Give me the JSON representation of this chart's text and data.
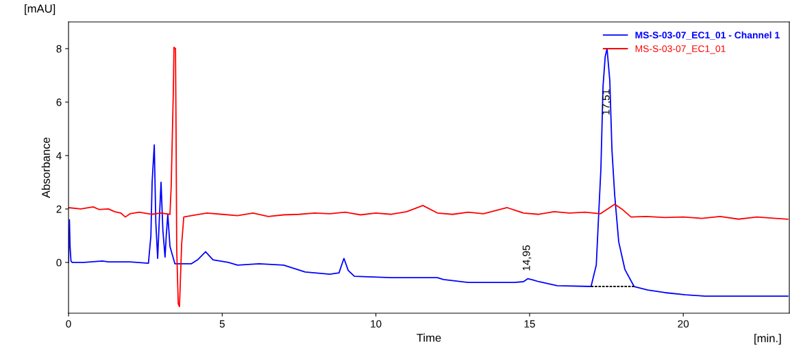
{
  "chart_data": {
    "type": "line",
    "xlabel": "Time",
    "ylabel": "Absorbance",
    "annotations": [
      "[mAU]",
      "[min.]",
      {
        "text": "14,95",
        "x": 14.95,
        "y": -0.61
      },
      {
        "text": "17,51",
        "x": 17.51,
        "y": 6.0
      }
    ],
    "xlim": [
      0,
      23.45
    ],
    "ylim": [
      -1.9,
      9.0
    ],
    "xticks": [
      0,
      5,
      10,
      15,
      20
    ],
    "yticks": [
      0,
      2,
      4,
      6,
      8
    ],
    "grid": false,
    "legend": "top right",
    "marker": "none",
    "line_style": "solid",
    "series": [
      {
        "name": "MS-S-03-07_EC1_01 - Channel 1",
        "color": "#0000ff",
        "x": [
          0,
          0.03,
          0.05,
          0.08,
          0.12,
          0.5,
          1.1,
          1.3,
          2.0,
          2.6,
          2.68,
          2.72,
          2.79,
          2.84,
          2.9,
          2.95,
          3.01,
          3.07,
          3.14,
          3.18,
          3.23,
          3.3,
          3.46,
          4.0,
          4.2,
          4.46,
          4.7,
          5.2,
          5.5,
          6.2,
          7.0,
          7.7,
          8.5,
          8.8,
          8.96,
          9.1,
          9.3,
          10.5,
          12.0,
          12.2,
          13.0,
          14.5,
          14.8,
          14.94,
          15.1,
          15.3,
          15.9,
          17.0,
          17.17,
          17.24,
          17.32,
          17.39,
          17.46,
          17.52,
          17.61,
          17.68,
          17.77,
          17.9,
          18.1,
          18.4,
          18.84,
          19.4,
          20.07,
          20.7,
          23.4
        ],
        "values": [
          0,
          1.6,
          0.6,
          0.05,
          0,
          0,
          0.05,
          0.02,
          0.02,
          -0.03,
          1.0,
          3.0,
          4.4,
          1.5,
          0.15,
          1.5,
          3.0,
          1.2,
          0.2,
          1.0,
          1.8,
          0.6,
          -0.05,
          -0.05,
          0.1,
          0.4,
          0.1,
          0.0,
          -0.1,
          -0.05,
          -0.1,
          -0.36,
          -0.44,
          -0.39,
          0.15,
          -0.3,
          -0.52,
          -0.57,
          -0.57,
          -0.64,
          -0.75,
          -0.75,
          -0.72,
          -0.61,
          -0.65,
          -0.72,
          -0.87,
          -0.9,
          -0.1,
          1.6,
          3.5,
          6.6,
          7.7,
          8.0,
          6.8,
          4.2,
          2.5,
          0.77,
          -0.26,
          -0.9,
          -1.03,
          -1.13,
          -1.21,
          -1.26,
          -1.26
        ]
      },
      {
        "name": "MS-S-03-07_EC1_01",
        "color": "#ff0000",
        "x": [
          0,
          0.4,
          0.8,
          1.0,
          1.3,
          1.5,
          1.7,
          1.85,
          2.0,
          2.3,
          2.7,
          3.0,
          3.3,
          3.34,
          3.41,
          3.43,
          3.48,
          3.5,
          3.52,
          3.57,
          3.61,
          3.68,
          3.75,
          4.0,
          4.5,
          5.0,
          5.5,
          6.0,
          6.5,
          7.0,
          7.5,
          8.0,
          8.5,
          9.0,
          9.5,
          10.0,
          10.5,
          11.0,
          11.53,
          12.0,
          12.5,
          13.0,
          13.5,
          14.27,
          14.8,
          15.3,
          15.8,
          16.3,
          16.8,
          17.3,
          17.77,
          18.0,
          18.3,
          18.8,
          19.4,
          20.0,
          20.6,
          21.2,
          21.8,
          22.4,
          23.0,
          23.4
        ],
        "values": [
          2.05,
          2.0,
          2.08,
          1.98,
          2.0,
          1.9,
          1.85,
          1.7,
          1.82,
          1.88,
          1.8,
          1.85,
          1.8,
          2.83,
          6.4,
          8.05,
          8.0,
          4.7,
          0.5,
          -1.55,
          -1.65,
          0.67,
          1.7,
          1.75,
          1.85,
          1.8,
          1.75,
          1.85,
          1.72,
          1.78,
          1.8,
          1.85,
          1.82,
          1.88,
          1.78,
          1.85,
          1.8,
          1.9,
          2.13,
          1.85,
          1.8,
          1.88,
          1.82,
          2.05,
          1.85,
          1.8,
          1.9,
          1.85,
          1.88,
          1.82,
          2.18,
          2.0,
          1.7,
          1.72,
          1.68,
          1.7,
          1.65,
          1.72,
          1.62,
          1.7,
          1.65,
          1.62
        ]
      },
      {
        "color": "#000000",
        "line_style": "dashed",
        "x": [
          17.0,
          18.4
        ],
        "values": [
          -0.9,
          -0.9
        ]
      }
    ]
  }
}
